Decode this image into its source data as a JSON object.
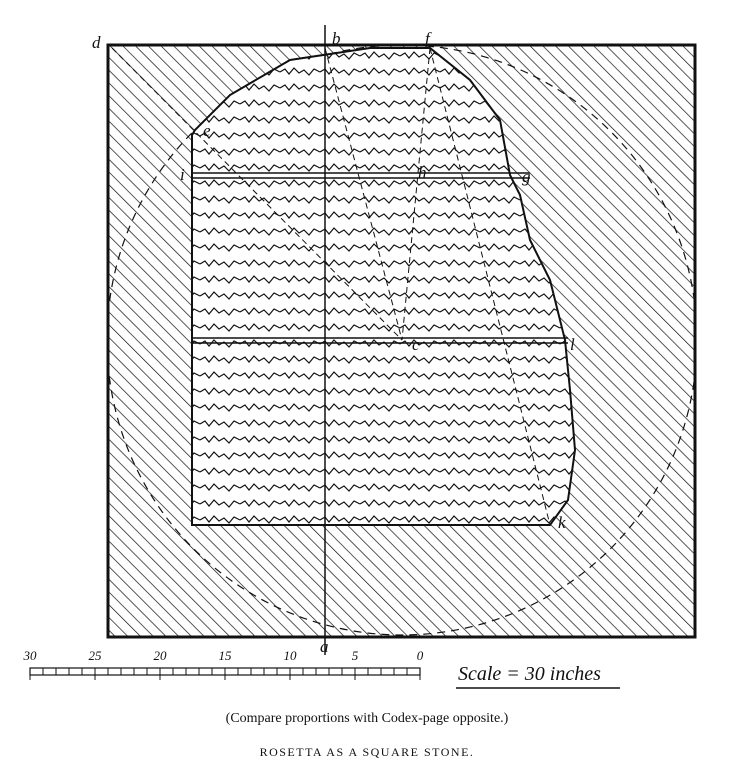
{
  "points": {
    "d": "d",
    "b": "b",
    "f": "f",
    "e": "e",
    "i": "i",
    "h": "h",
    "g": "g",
    "c": "c",
    "l": "l",
    "k": "k",
    "a": "a"
  },
  "scale": {
    "ticks": [
      "30",
      "25",
      "20",
      "15",
      "10",
      "5",
      "0"
    ],
    "label": "Scale = 30 inches"
  },
  "caption": "(Compare proportions with Codex-page opposite.)",
  "title": "ROSETTA AS A SQUARE STONE."
}
